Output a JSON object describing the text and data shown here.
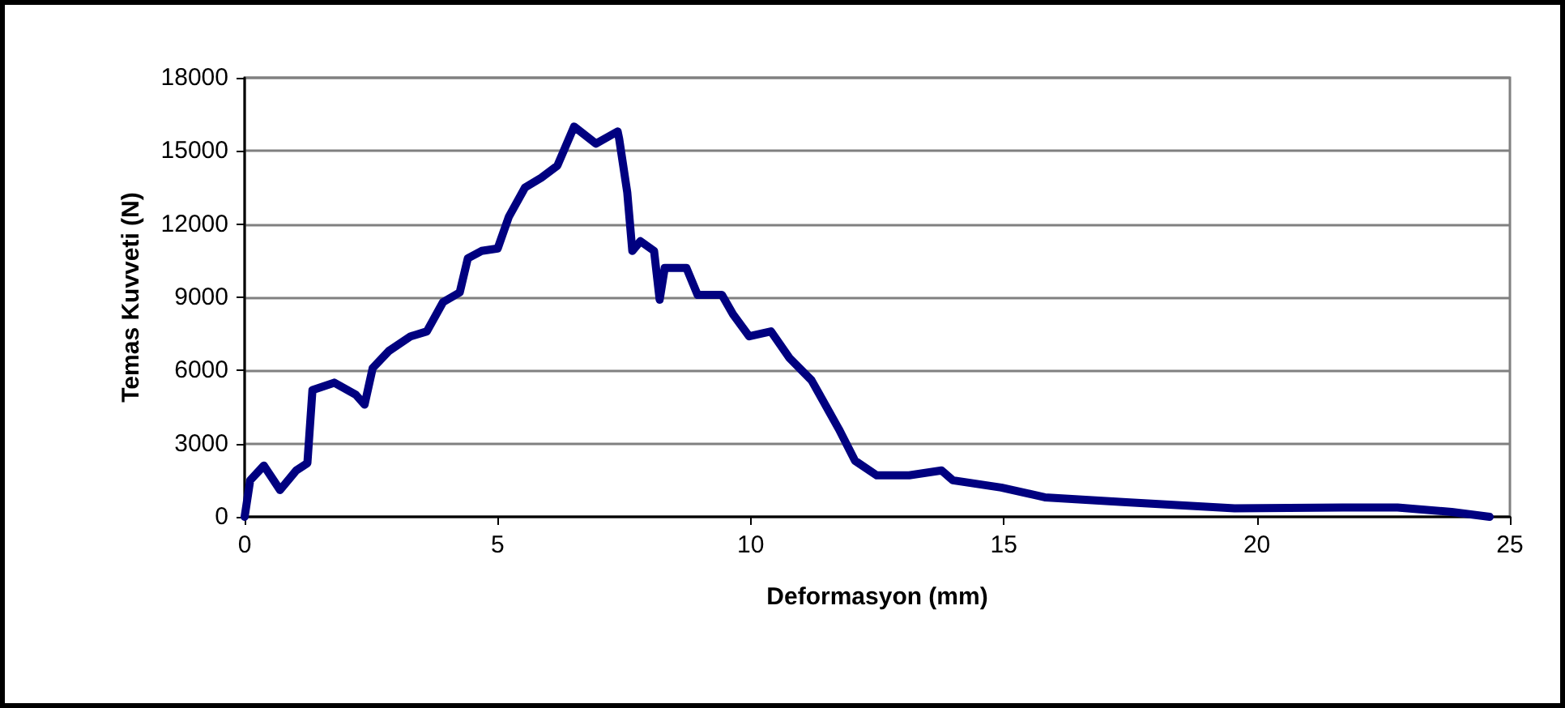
{
  "chart_data": {
    "type": "line",
    "xlabel": "Deformasyon (mm)",
    "ylabel": "Temas Kuvveti (N)",
    "xlim": [
      0,
      25
    ],
    "xticks": [
      0,
      5,
      10,
      15,
      20,
      25
    ],
    "ylim": [
      0,
      18000
    ],
    "yticks": [
      0,
      3000,
      6000,
      9000,
      12000,
      15000,
      18000
    ],
    "grid": "y",
    "marker": "none",
    "line_style": "solid",
    "series": [
      {
        "color": "#000080",
        "x": [
          0,
          0.11,
          0.38,
          0.7,
          1.02,
          1.24,
          1.34,
          1.77,
          2.2,
          2.37,
          2.53,
          2.85,
          3.28,
          3.6,
          3.92,
          4.25,
          4.41,
          4.68,
          5,
          5.22,
          5.54,
          5.86,
          6.18,
          6.51,
          6.94,
          7.37,
          7.4,
          7.56,
          7.66,
          7.82,
          8.09,
          8.2,
          8.3,
          8.73,
          8.95,
          9.43,
          9.65,
          9.97,
          10.4,
          10.77,
          11.2,
          11.74,
          12.06,
          12.49,
          13.13,
          13.77,
          13.99,
          14.95,
          15.81,
          17.42,
          19.56,
          21.7,
          22.78,
          23.85,
          24.6
        ],
        "values": [
          0,
          1500,
          2100,
          1100,
          1900,
          2200,
          5200,
          5500,
          5000,
          4600,
          6100,
          6800,
          7400,
          7600,
          8800,
          9200,
          10600,
          10900,
          11000,
          12300,
          13500,
          13900,
          14400,
          16000,
          15300,
          15800,
          15500,
          13300,
          10900,
          11300,
          10900,
          8900,
          10200,
          10200,
          9100,
          9100,
          8300,
          7400,
          7600,
          6500,
          5600,
          3600,
          2300,
          1700,
          1700,
          1900,
          1500,
          1200,
          800,
          600,
          350,
          380,
          380,
          200,
          0
        ]
      }
    ]
  }
}
